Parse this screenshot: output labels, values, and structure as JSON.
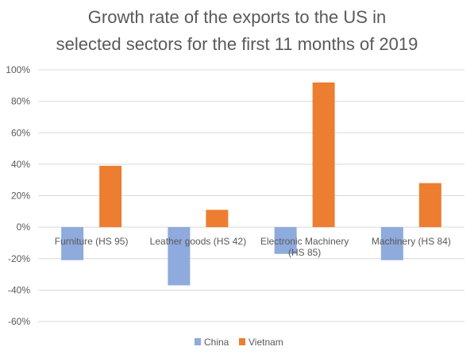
{
  "chart_data": {
    "type": "bar",
    "title": [
      "Growth rate of the exports to the US in",
      "selected sectors for the first 11 months of 2019"
    ],
    "categories": [
      [
        "Furniture (HS 95)"
      ],
      [
        "Leather goods (HS 42)"
      ],
      [
        "Electronic Machinery",
        "(HS 85)"
      ],
      [
        "Machinery (HS 84)"
      ]
    ],
    "series": [
      {
        "name": "China",
        "color": "#8FAADC",
        "values": [
          -21,
          -37,
          -17,
          -21
        ]
      },
      {
        "name": "Vietnam",
        "color": "#ED7D31",
        "values": [
          39,
          11,
          92,
          28
        ]
      }
    ],
    "y_ticks": [
      "100%",
      "80%",
      "60%",
      "40%",
      "20%",
      "0%",
      "-20%",
      "-40%",
      "-60%"
    ],
    "ylim": [
      -60,
      100
    ],
    "grid": true,
    "legend_position": "bottom"
  }
}
